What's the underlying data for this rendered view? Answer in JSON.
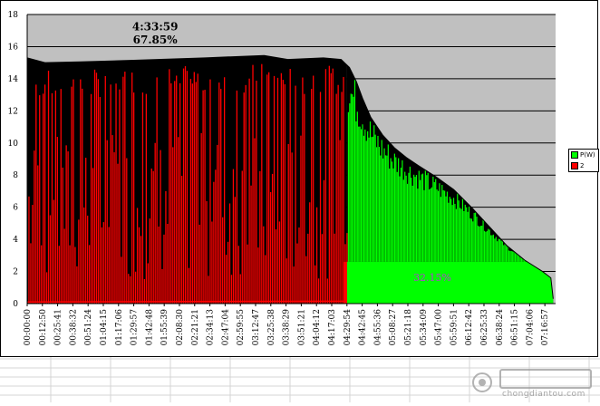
{
  "chart_data": {
    "type": "bar",
    "x_tick_labels": [
      "00:00:00",
      "00:12:50",
      "00:25:41",
      "00:38:32",
      "00:51:24",
      "01:04:15",
      "01:17:06",
      "01:29:57",
      "01:42:48",
      "01:55:39",
      "02:08:30",
      "02:21:21",
      "02:34:13",
      "02:47:04",
      "02:59:55",
      "03:12:47",
      "03:25:38",
      "03:38:29",
      "03:51:21",
      "04:04:12",
      "04:17:03",
      "04:29:54",
      "04:42:45",
      "04:55:36",
      "05:08:27",
      "05:21:18",
      "05:34:09",
      "05:47:00",
      "05:59:51",
      "06:12:42",
      "06:25:33",
      "06:38:24",
      "06:51:15",
      "07:04:06",
      "07:16:57"
    ],
    "ylim": [
      0,
      18
    ],
    "y_ticks": [
      0,
      2,
      4,
      6,
      8,
      10,
      12,
      14,
      16,
      18
    ],
    "x_range": [
      "00:00:00",
      "07:26:00"
    ],
    "grid": true,
    "plot_background": "#c0c0c0",
    "legend_position": "right",
    "series": [
      {
        "name": "P(W)",
        "color": "#00ff00",
        "points": [
          [
            "00:00:00",
            15.3
          ],
          [
            "00:15:00",
            15.0
          ],
          [
            "00:45:00",
            15.05
          ],
          [
            "01:30:00",
            15.15
          ],
          [
            "02:30:00",
            15.3
          ],
          [
            "03:20:00",
            15.45
          ],
          [
            "03:40:00",
            15.2
          ],
          [
            "04:10:00",
            15.3
          ],
          [
            "04:25:00",
            15.2
          ],
          [
            "04:32:00",
            14.7
          ],
          [
            "04:38:00",
            13.8
          ],
          [
            "04:43:00",
            12.8
          ],
          [
            "04:50:00",
            11.6
          ],
          [
            "05:00:00",
            10.5
          ],
          [
            "05:10:00",
            9.7
          ],
          [
            "05:20:00",
            9.1
          ],
          [
            "05:30:00",
            8.6
          ],
          [
            "05:45:00",
            7.9
          ],
          [
            "06:00:00",
            7.1
          ],
          [
            "06:15:00",
            6.0
          ],
          [
            "06:30:00",
            4.8
          ],
          [
            "06:45:00",
            3.6
          ],
          [
            "07:00:00",
            2.7
          ],
          [
            "07:15:00",
            2.0
          ],
          [
            "07:22:00",
            1.6
          ],
          [
            "07:24:00",
            0.3
          ]
        ]
      },
      {
        "name": "2",
        "color": "#ff0000",
        "points": [
          [
            "00:00:00",
            0.1
          ],
          [
            "04:29:00",
            0.15
          ],
          [
            "04:30:00",
            2.5
          ],
          [
            "04:32:00",
            2.6
          ],
          [
            "07:24:00",
            2.6
          ]
        ]
      }
    ],
    "annotations": [
      {
        "text": "4:33:59",
        "at": [
          "01:48:00",
          17.0
        ]
      },
      {
        "text": "67.85%",
        "at": [
          "01:48:00",
          16.2
        ]
      },
      {
        "text": "32.15%",
        "at": [
          "05:42:00",
          1.4
        ]
      }
    ]
  },
  "legend": {
    "items": [
      {
        "label": "P(W)",
        "color": "#00ff00"
      },
      {
        "label": "2",
        "color": "#ff0000"
      }
    ]
  },
  "watermark": {
    "text": "chongdiantou.com"
  }
}
